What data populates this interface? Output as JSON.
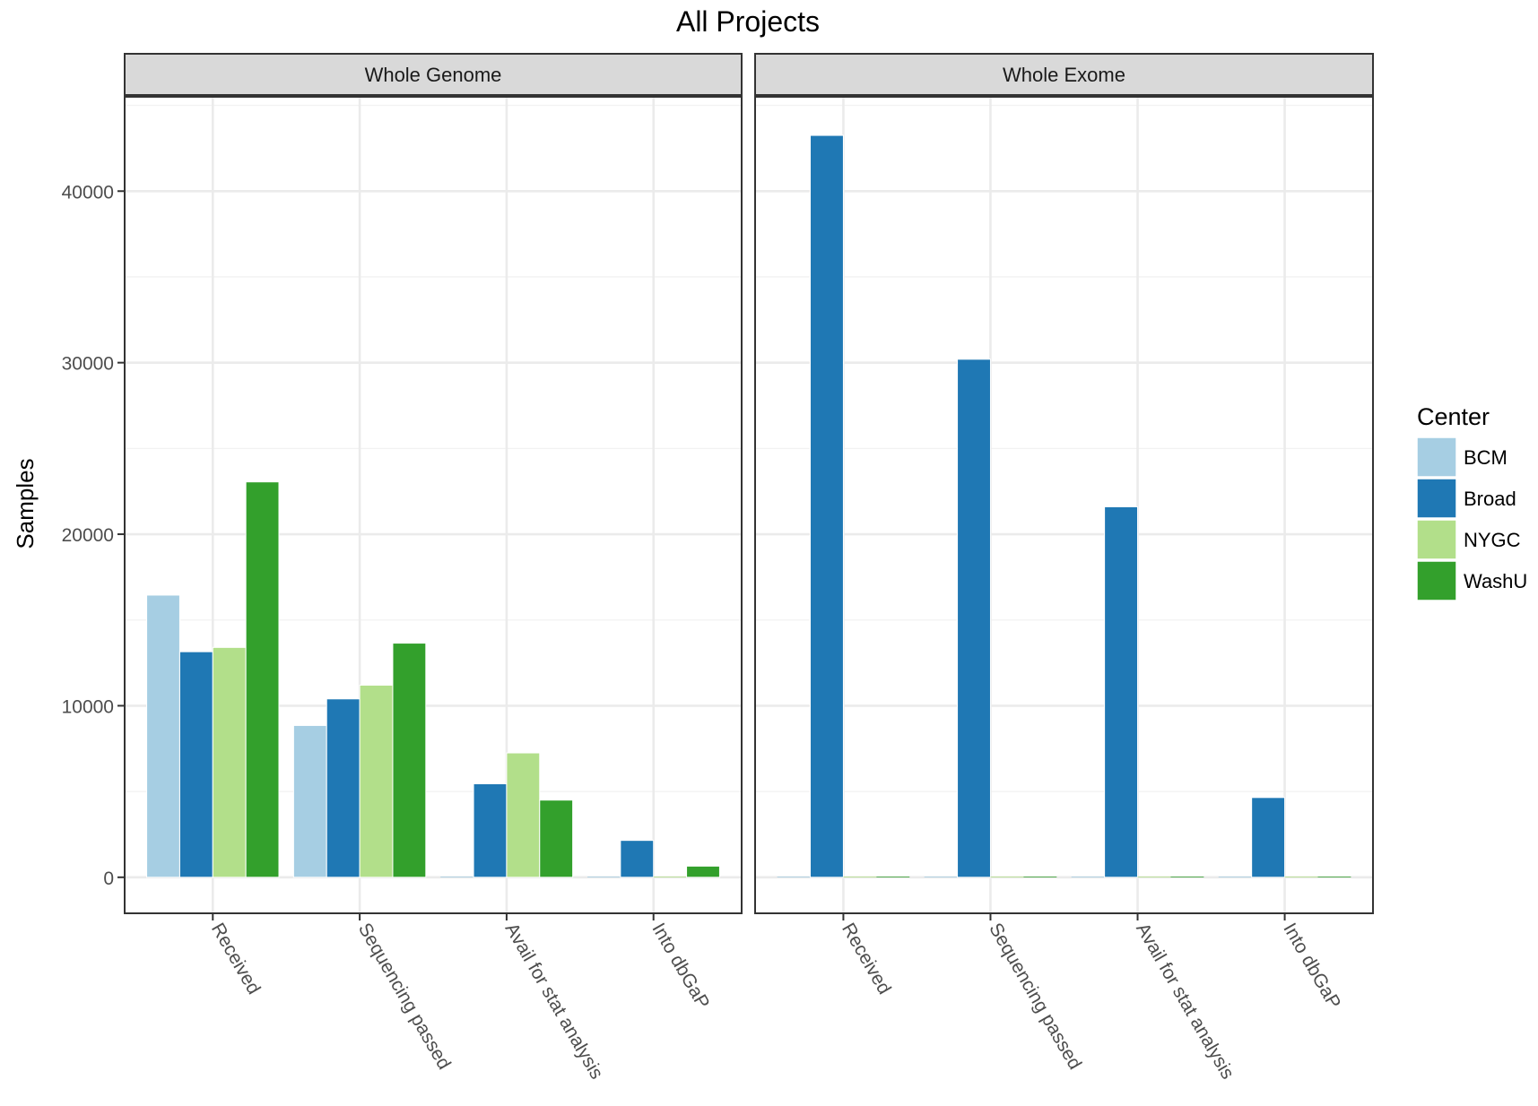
{
  "chart_data": {
    "type": "bar",
    "title": "All Projects",
    "ylabel": "Samples",
    "xlabel": "",
    "ylim": [
      -2100,
      45500
    ],
    "yticks": [
      0,
      10000,
      20000,
      30000,
      40000
    ],
    "ytick_labels": [
      "0",
      "10000",
      "20000",
      "30000",
      "40000"
    ],
    "categories": [
      "Received",
      "Sequencing passed",
      "Avail for stat analysis",
      "Into dbGaP"
    ],
    "grid": true,
    "legend": {
      "title": "Center",
      "position": "right"
    },
    "colors": {
      "BCM": "#a6cee3",
      "Broad": "#1f78b4",
      "NYGC": "#b2df8a",
      "WashU": "#33a02c"
    },
    "facets": [
      {
        "label": "Whole Genome",
        "series": [
          {
            "name": "BCM",
            "values": [
              16450,
              8850,
              0,
              0
            ]
          },
          {
            "name": "Broad",
            "values": [
              13150,
              10400,
              5450,
              2150
            ]
          },
          {
            "name": "NYGC",
            "values": [
              13400,
              11200,
              7250,
              0
            ]
          },
          {
            "name": "WashU",
            "values": [
              23050,
              13650,
              4500,
              650
            ]
          }
        ]
      },
      {
        "label": "Whole Exome",
        "series": [
          {
            "name": "BCM",
            "values": [
              0,
              0,
              0,
              0
            ]
          },
          {
            "name": "Broad",
            "values": [
              43250,
              30200,
              21600,
              4650
            ]
          },
          {
            "name": "NYGC",
            "values": [
              0,
              0,
              0,
              0
            ]
          },
          {
            "name": "WashU",
            "values": [
              0,
              0,
              0,
              0
            ]
          }
        ]
      }
    ]
  }
}
